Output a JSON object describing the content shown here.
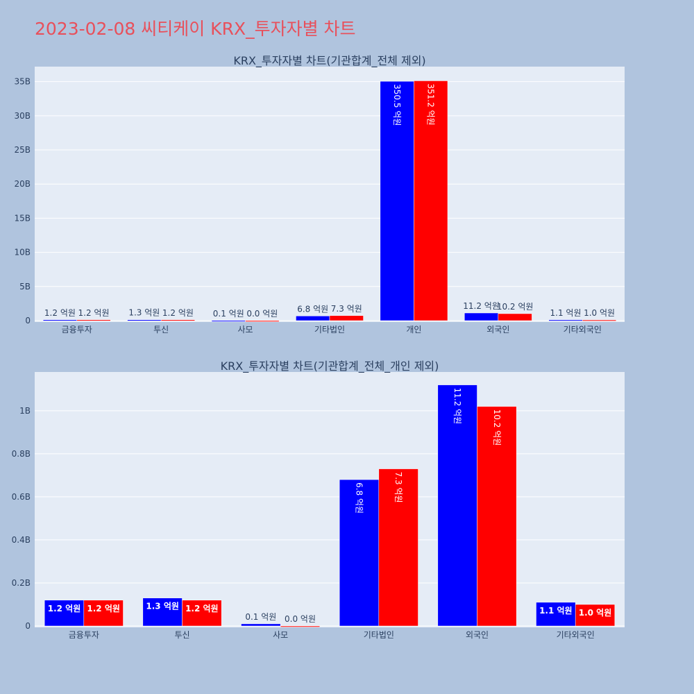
{
  "page": {
    "title": "2023-02-08 씨티케이 KRX_투자자별 차트",
    "background": "#b0c4de",
    "title_color": "#e8505b"
  },
  "colors": {
    "buy": "#0000ff",
    "sell": "#ff0000",
    "plot_bg": "#e5ecf6",
    "grid": "#ffffff",
    "text": "#2a3f5f"
  },
  "chart_data": [
    {
      "type": "bar",
      "title": "KRX_투자자별 차트(기관합계_전체 제외)",
      "categories": [
        "금융투자",
        "투신",
        "사모",
        "기타법인",
        "개인",
        "외국인",
        "기타외국인"
      ],
      "series": [
        {
          "values": [
            120000000,
            130000000,
            10000000,
            680000000,
            35050000000,
            1120000000,
            110000000
          ],
          "labels": [
            "1.2 억원",
            "1.3 억원",
            "0.1 억원",
            "6.8 억원",
            "350.5 억원",
            "11.2 억원",
            "1.1 억원"
          ]
        },
        {
          "values": [
            120000000,
            120000000,
            0,
            730000000,
            35120000000,
            1020000000,
            100000000
          ],
          "labels": [
            "1.2 억원",
            "1.2 억원",
            "0.0 억원",
            "7.3 억원",
            "351.2 억원",
            "10.2 억원",
            "1.0 억원"
          ]
        }
      ],
      "ylim": [
        0,
        37200000000
      ],
      "yticks": [
        {
          "value": 0,
          "label": "0"
        },
        {
          "value": 5000000000,
          "label": "5B"
        },
        {
          "value": 10000000000,
          "label": "10B"
        },
        {
          "value": 15000000000,
          "label": "15B"
        },
        {
          "value": 20000000000,
          "label": "20B"
        },
        {
          "value": 25000000000,
          "label": "25B"
        },
        {
          "value": 30000000000,
          "label": "30B"
        },
        {
          "value": 35000000000,
          "label": "35B"
        }
      ],
      "grid": true
    },
    {
      "type": "bar",
      "title": "KRX_투자자별 차트(기관합계_전체_개인 제외)",
      "categories": [
        "금융투자",
        "투신",
        "사모",
        "기타법인",
        "외국인",
        "기타외국인"
      ],
      "series": [
        {
          "values": [
            120000000,
            130000000,
            10000000,
            680000000,
            1120000000,
            110000000
          ],
          "labels": [
            "1.2 억원",
            "1.3 억원",
            "0.1 억원",
            "6.8 억원",
            "11.2 억원",
            "1.1 억원"
          ]
        },
        {
          "values": [
            120000000,
            120000000,
            0,
            730000000,
            1020000000,
            100000000
          ],
          "labels": [
            "1.2 억원",
            "1.2 억원",
            "0.0 억원",
            "7.3 억원",
            "10.2 억원",
            "1.0 억원"
          ]
        }
      ],
      "ylim": [
        0,
        1180000000
      ],
      "yticks": [
        {
          "value": 0,
          "label": "0"
        },
        {
          "value": 200000000,
          "label": "0.2B"
        },
        {
          "value": 400000000,
          "label": "0.4B"
        },
        {
          "value": 600000000,
          "label": "0.6B"
        },
        {
          "value": 800000000,
          "label": "0.8B"
        },
        {
          "value": 1000000000,
          "label": "1B"
        }
      ],
      "grid": true
    }
  ]
}
